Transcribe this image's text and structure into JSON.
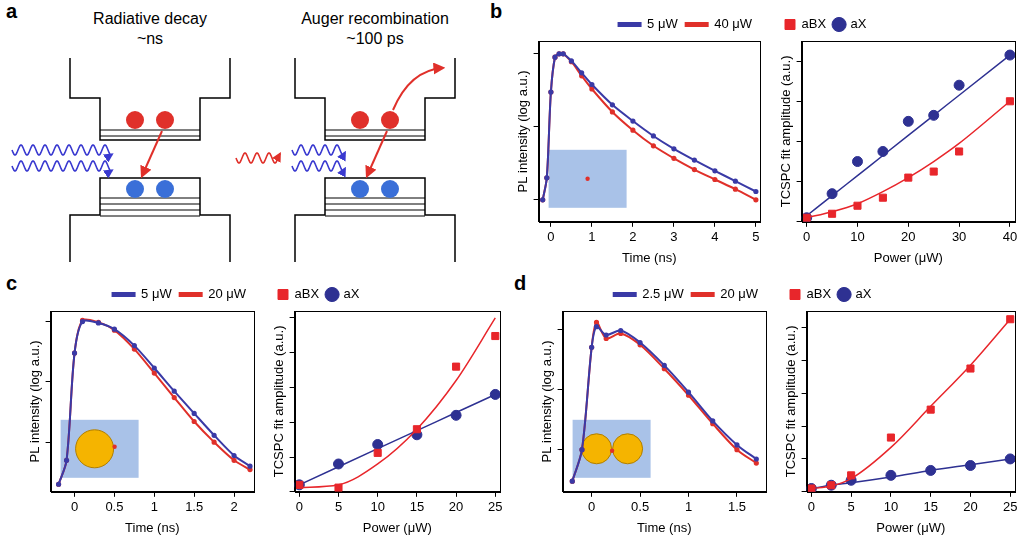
{
  "panel_letters": [
    "a",
    "b",
    "c",
    "d"
  ],
  "diagram": {
    "panels": [
      {
        "title": "Radiative decay",
        "time": "~ns"
      },
      {
        "title": "Auger recombination",
        "time": "~100 ps"
      }
    ]
  },
  "chart_data": [
    {
      "type": "line",
      "x_label": "Time (ns)",
      "y_label": "PL intensity (log a.u.)",
      "log": "y",
      "grid": false,
      "legend": "top-right",
      "tick_labels": "x",
      "x": [
        -0.2,
        -0.1,
        0,
        0.1,
        0.2,
        0.3,
        0.5,
        0.75,
        1,
        1.5,
        2,
        2.5,
        3,
        3.5,
        4,
        4.5,
        5
      ],
      "xlim": [
        -0.3,
        5.1
      ],
      "xticks": [
        0,
        1,
        2,
        3,
        4,
        5
      ],
      "ylim": [
        0.005,
        1.5
      ],
      "yticks": [
        0.01,
        0.1,
        1
      ],
      "series": [
        {
          "name": "5 μW",
          "color": "#3a3aa6",
          "marker": "circle",
          "line_style": "solid",
          "values": [
            0.01,
            0.02,
            0.3,
            0.9,
            1.0,
            1.0,
            0.8,
            0.55,
            0.38,
            0.2,
            0.12,
            0.075,
            0.05,
            0.035,
            0.025,
            0.018,
            0.013
          ]
        },
        {
          "name": "40 μW",
          "color": "#e0302a",
          "marker": "circle",
          "line_style": "solid",
          "values": [
            0.01,
            0.02,
            0.3,
            0.9,
            1.0,
            1.0,
            0.78,
            0.5,
            0.33,
            0.16,
            0.09,
            0.055,
            0.037,
            0.026,
            0.019,
            0.014,
            0.01
          ]
        }
      ]
    },
    {
      "type": "scatter",
      "x_label": "Power (μW)",
      "y_label": "TCSPC fit amplitude (a.u.)",
      "grid": false,
      "legend": "top-left",
      "tick_labels": "x",
      "x": [
        0,
        5,
        10,
        15,
        20,
        25,
        30,
        40
      ],
      "xlim": [
        -1,
        41
      ],
      "xticks": [
        0,
        10,
        20,
        30,
        40
      ],
      "ylim": [
        0,
        0.9
      ],
      "yticks": [
        0,
        0.2,
        0.4,
        0.6,
        0.8
      ],
      "series": [
        {
          "name": "aBX",
          "color": "#e8262b",
          "marker": "square",
          "values": [
            0.02,
            0.04,
            0.08,
            0.12,
            0.22,
            0.25,
            0.35,
            0.6
          ],
          "fit": [
            0.02,
            0.05,
            0.09,
            0.15,
            0.22,
            0.3,
            0.39,
            0.6
          ]
        },
        {
          "name": "aX",
          "color": "#2e3192",
          "marker": "circle",
          "values": [
            0.02,
            0.14,
            0.3,
            0.35,
            0.5,
            0.53,
            0.68,
            0.83
          ],
          "fit": [
            0.03,
            0.13,
            0.23,
            0.33,
            0.43,
            0.53,
            0.63,
            0.83
          ]
        }
      ]
    },
    {
      "type": "line",
      "x_label": "Time (ns)",
      "y_label": "PL intensity (log a.u.)",
      "log": "y",
      "grid": false,
      "legend": "top-right",
      "tick_labels": "x",
      "x": [
        -0.2,
        -0.1,
        0,
        0.1,
        0.3,
        0.5,
        0.75,
        1,
        1.25,
        1.5,
        1.75,
        2,
        2.2
      ],
      "xlim": [
        -0.3,
        2.25
      ],
      "xticks": [
        0,
        0.5,
        1,
        1.5,
        2
      ],
      "ylim": [
        0.0015,
        1.5
      ],
      "yticks": [
        0.01,
        0.1,
        1
      ],
      "series": [
        {
          "name": "5 μW",
          "color": "#3a3aa6",
          "marker": "circle",
          "line_style": "solid",
          "values": [
            0.002,
            0.005,
            0.3,
            1.0,
            0.95,
            0.75,
            0.4,
            0.17,
            0.07,
            0.03,
            0.013,
            0.006,
            0.004
          ]
        },
        {
          "name": "20 μW",
          "color": "#e0302a",
          "marker": "circle",
          "line_style": "solid",
          "values": [
            0.002,
            0.005,
            0.3,
            1.05,
            0.97,
            0.72,
            0.35,
            0.14,
            0.055,
            0.022,
            0.01,
            0.005,
            0.0035
          ]
        }
      ]
    },
    {
      "type": "scatter",
      "x_label": "Power (μW)",
      "y_label": "TCSPC fit amplitude (a.u.)",
      "grid": false,
      "legend": "top-left",
      "tick_labels": "x",
      "x": [
        0,
        5,
        10,
        15,
        20,
        25
      ],
      "xlim": [
        -0.6,
        25.6
      ],
      "xticks": [
        0,
        5,
        10,
        15,
        20,
        25
      ],
      "ylim": [
        0,
        1.3
      ],
      "yticks": [
        0,
        0.25,
        0.5,
        0.75,
        1,
        1.25
      ],
      "series": [
        {
          "name": "aBX",
          "color": "#e8262b",
          "marker": "square",
          "values": [
            0.05,
            0.03,
            0.28,
            0.45,
            0.9,
            1.12
          ],
          "fit": [
            0.03,
            0.05,
            0.2,
            0.45,
            0.8,
            1.25
          ]
        },
        {
          "name": "aX",
          "color": "#2e3192",
          "marker": "circle",
          "values": [
            0.05,
            0.2,
            0.34,
            0.41,
            0.55,
            0.7
          ],
          "fit": [
            0.05,
            0.18,
            0.31,
            0.44,
            0.57,
            0.7
          ]
        }
      ]
    },
    {
      "type": "line",
      "x_label": "Time (ns)",
      "y_label": "PL intensity (log a.u.)",
      "log": "y",
      "grid": false,
      "legend": "top-right",
      "tick_labels": "x",
      "x": [
        -0.2,
        -0.1,
        0,
        0.05,
        0.15,
        0.3,
        0.5,
        0.75,
        1,
        1.25,
        1.5,
        1.7
      ],
      "xlim": [
        -0.3,
        1.8
      ],
      "xticks": [
        0,
        0.5,
        1,
        1.5
      ],
      "ylim": [
        0.002,
        2
      ],
      "yticks": [
        0.01,
        0.1,
        1
      ],
      "series": [
        {
          "name": "2.5 μW",
          "color": "#3a3aa6",
          "marker": "circle",
          "line_style": "solid",
          "values": [
            0.003,
            0.01,
            0.5,
            1.1,
            0.8,
            0.95,
            0.6,
            0.25,
            0.09,
            0.03,
            0.012,
            0.007
          ]
        },
        {
          "name": "20 μW",
          "color": "#e0302a",
          "marker": "circle",
          "line_style": "solid",
          "values": [
            0.003,
            0.01,
            0.5,
            1.3,
            0.7,
            0.85,
            0.55,
            0.22,
            0.08,
            0.027,
            0.01,
            0.006
          ]
        }
      ]
    },
    {
      "type": "scatter",
      "x_label": "Power (μW)",
      "y_label": "TCSPC fit amplitude (a.u.)",
      "grid": false,
      "legend": "top-left",
      "tick_labels": "x",
      "x": [
        0,
        2.5,
        5,
        10,
        15,
        20,
        25
      ],
      "xlim": [
        -0.6,
        25.6
      ],
      "xticks": [
        0,
        5,
        10,
        15,
        20,
        25
      ],
      "ylim": [
        0,
        1.1
      ],
      "yticks": [
        0,
        0.2,
        0.4,
        0.6,
        0.8,
        1
      ],
      "series": [
        {
          "name": "aBX",
          "color": "#e8262b",
          "marker": "square",
          "values": [
            0.02,
            0.04,
            0.1,
            0.33,
            0.5,
            0.75,
            1.05
          ],
          "fit": [
            0.02,
            0.035,
            0.08,
            0.27,
            0.52,
            0.77,
            1.05
          ]
        },
        {
          "name": "aX",
          "color": "#2e3192",
          "marker": "circle",
          "values": [
            0.02,
            0.04,
            0.07,
            0.1,
            0.13,
            0.16,
            0.2
          ],
          "fit": [
            0.02,
            0.04,
            0.055,
            0.09,
            0.13,
            0.165,
            0.2
          ]
        }
      ]
    }
  ]
}
